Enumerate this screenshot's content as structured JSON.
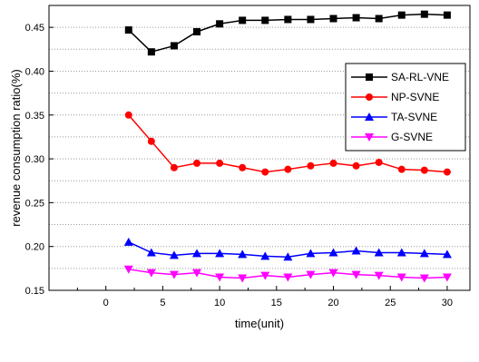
{
  "chart_data": {
    "type": "line",
    "title": "",
    "xlabel": "time(unit)",
    "ylabel": "revenue consumption ratio(%)",
    "xlim": [
      -5,
      32
    ],
    "ylim": [
      0.15,
      0.475
    ],
    "x_ticks": [
      0,
      5,
      10,
      15,
      20,
      25,
      30
    ],
    "y_ticks": [
      0.15,
      0.2,
      0.25,
      0.3,
      0.35,
      0.4,
      0.45
    ],
    "y_tick_labels": [
      "0.15",
      "0.20",
      "0.25",
      "0.30",
      "0.35",
      "0.40",
      "0.45"
    ],
    "grid": "horizontal-dotted",
    "legend_position": "right",
    "x": [
      2,
      4,
      6,
      8,
      10,
      12,
      14,
      16,
      18,
      20,
      22,
      24,
      26,
      28,
      30
    ],
    "series": [
      {
        "name": "SA-RL-VNE",
        "color": "#000000",
        "marker": "square",
        "values": [
          0.447,
          0.422,
          0.429,
          0.445,
          0.454,
          0.458,
          0.458,
          0.459,
          0.459,
          0.46,
          0.461,
          0.46,
          0.464,
          0.465,
          0.464
        ]
      },
      {
        "name": "NP-SVNE",
        "color": "#ff0000",
        "marker": "circle",
        "values": [
          0.35,
          0.32,
          0.29,
          0.295,
          0.295,
          0.29,
          0.285,
          0.288,
          0.292,
          0.295,
          0.292,
          0.296,
          0.288,
          0.287,
          0.285
        ]
      },
      {
        "name": "TA-SVNE",
        "color": "#0000ff",
        "marker": "triangle-up",
        "values": [
          0.205,
          0.193,
          0.19,
          0.192,
          0.192,
          0.191,
          0.189,
          0.188,
          0.192,
          0.193,
          0.195,
          0.193,
          0.193,
          0.192,
          0.191
        ]
      },
      {
        "name": "G-SVNE",
        "color": "#ff00ff",
        "marker": "triangle-down",
        "values": [
          0.174,
          0.17,
          0.168,
          0.17,
          0.165,
          0.164,
          0.167,
          0.165,
          0.168,
          0.17,
          0.168,
          0.167,
          0.165,
          0.164,
          0.165
        ]
      }
    ]
  }
}
